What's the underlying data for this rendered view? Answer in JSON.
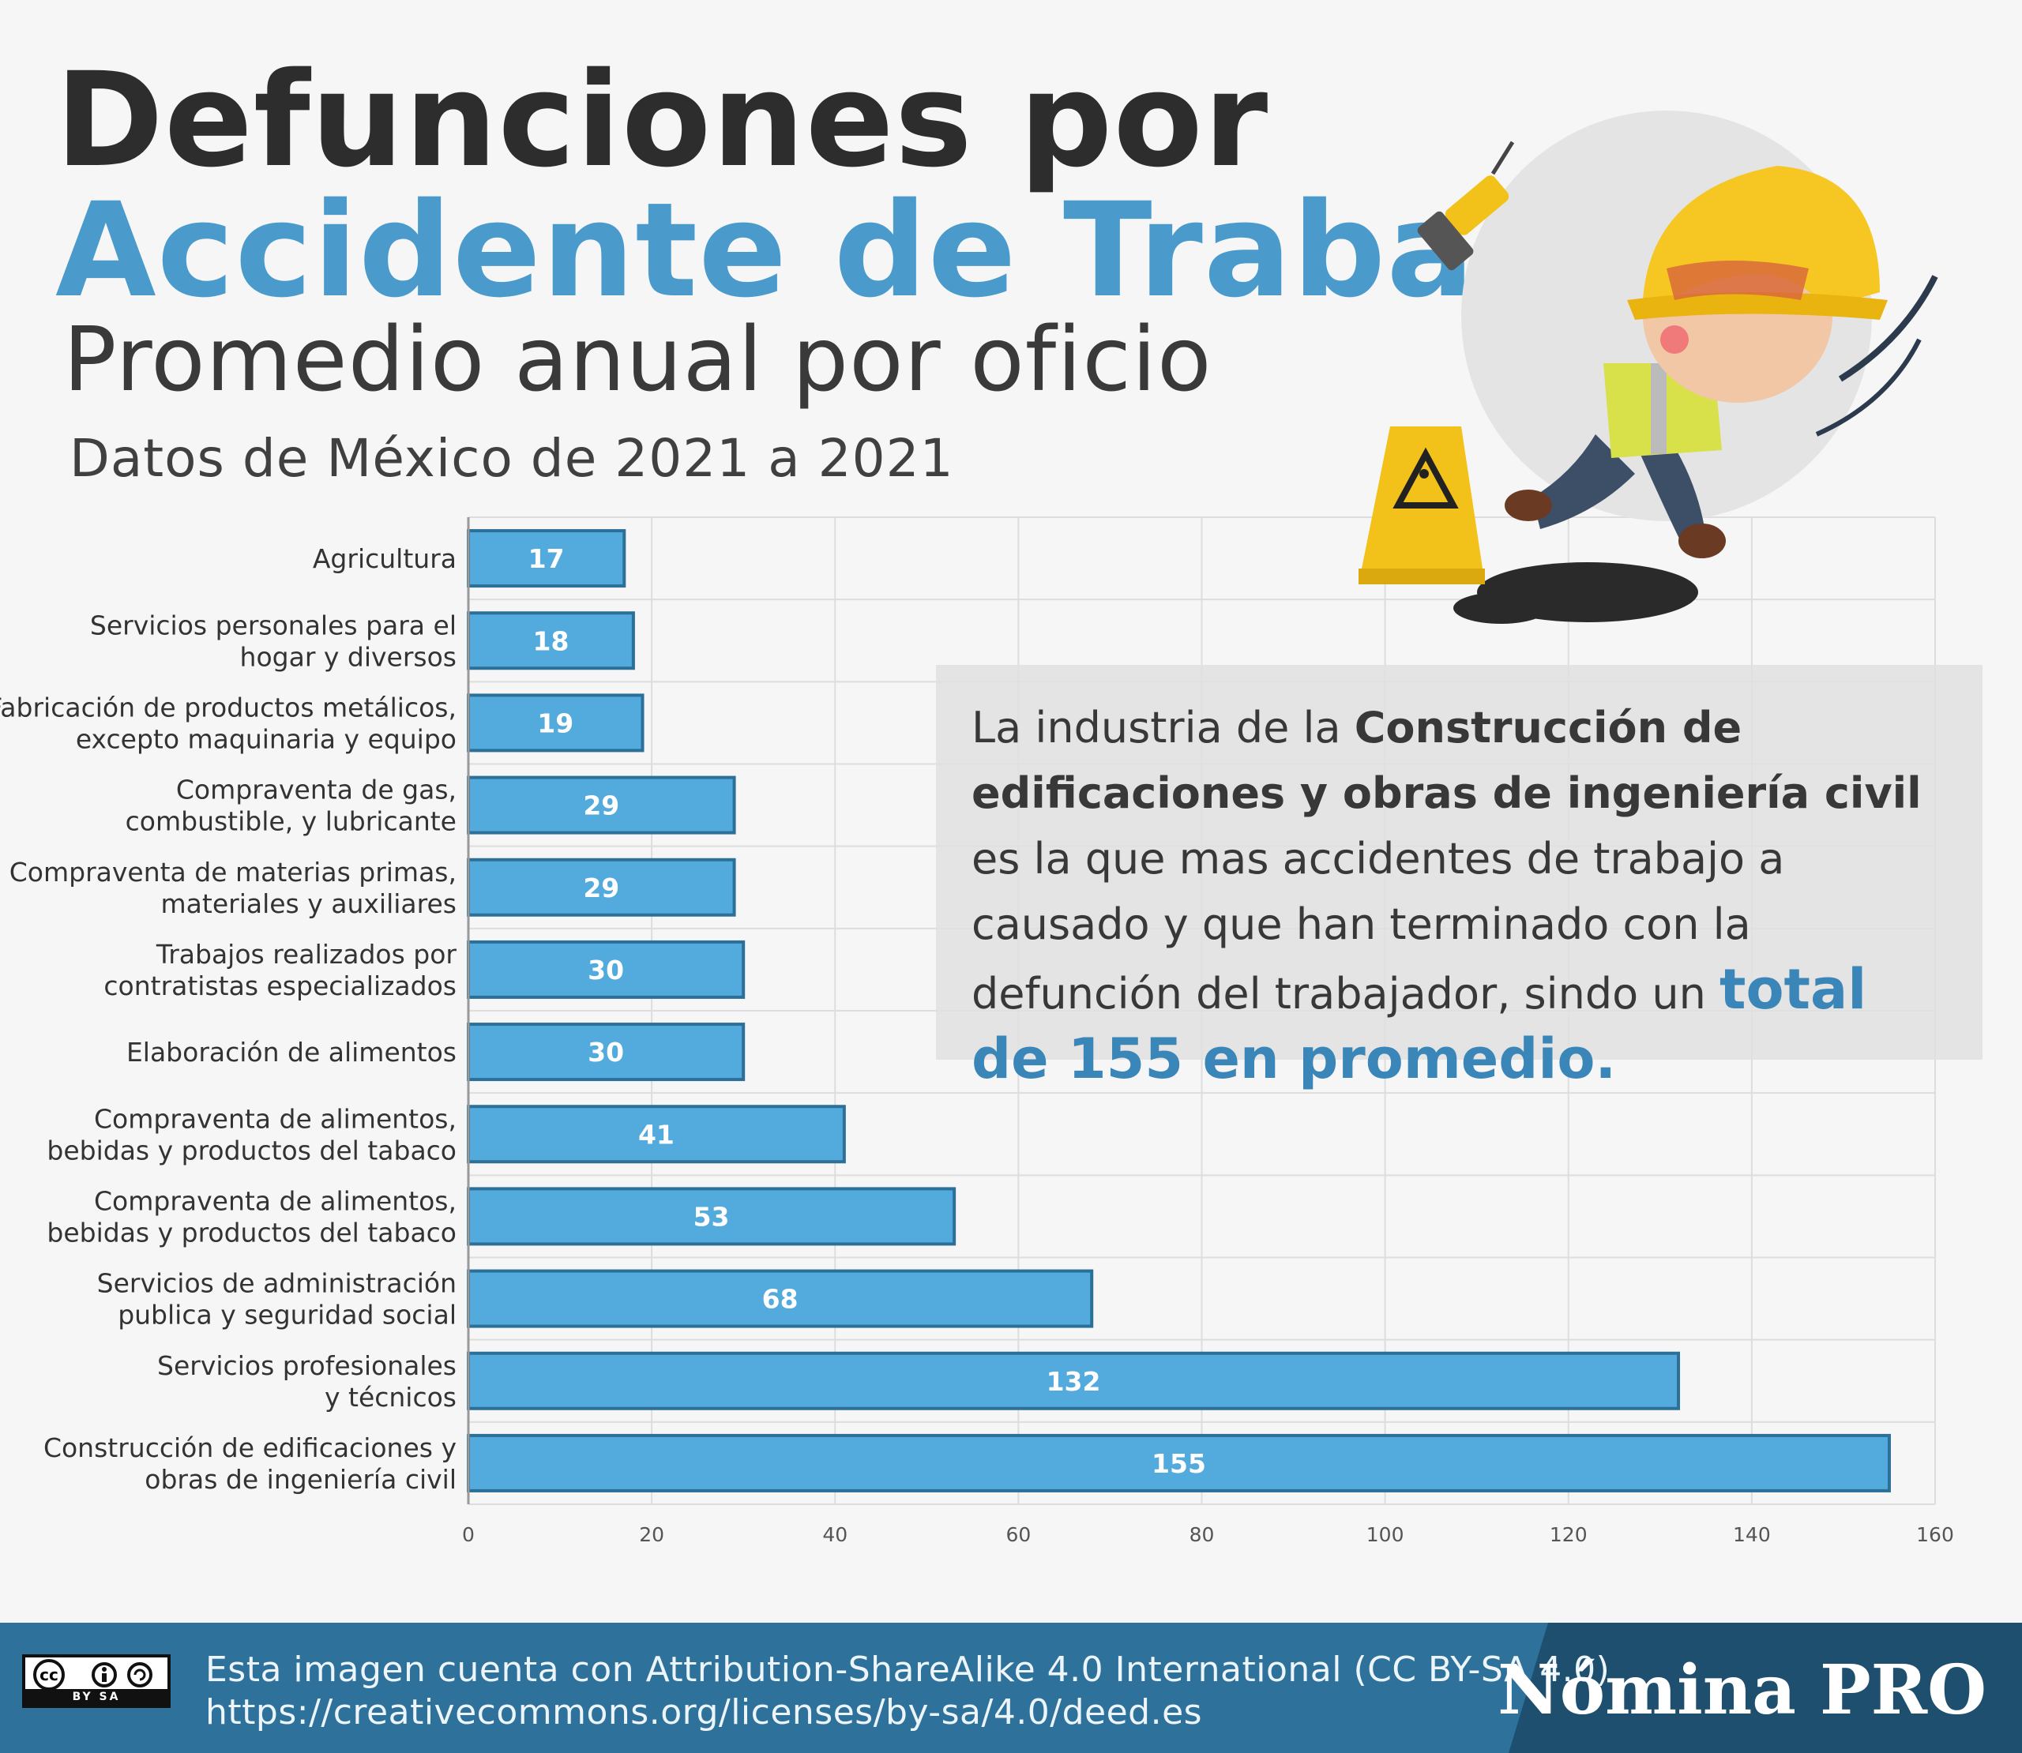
{
  "header": {
    "title_line1": "Defunciones por",
    "title_line2": "Accidente de Trabajo",
    "subtitle": "Promedio anual por oficio",
    "period": "Datos de México de  2021 a 2021"
  },
  "colors": {
    "accent": "#4a9bcb",
    "bar_fill": "#52aadd",
    "bar_stroke": "#2c6f97",
    "highlight": "#3a86b8",
    "text_dark": "#2d2d2d",
    "footer_bg": "#2e729b",
    "footer_dark": "#1f4f6e"
  },
  "chart_data": {
    "type": "bar",
    "orientation": "horizontal",
    "title": "Promedio anual por oficio",
    "xlabel": "",
    "ylabel": "",
    "xlim": [
      0,
      160
    ],
    "xticks": [
      0,
      20,
      40,
      60,
      80,
      100,
      120,
      140,
      160
    ],
    "grid": true,
    "categories": [
      [
        "Agricultura"
      ],
      [
        "Servicios personales para el",
        "hogar y diversos"
      ],
      [
        "Fabricación de productos metálicos,",
        "excepto maquinaria y equipo"
      ],
      [
        "Compraventa de gas,",
        "combustible, y lubricante"
      ],
      [
        "Compraventa de materias primas,",
        "materiales y auxiliares"
      ],
      [
        "Trabajos realizados por",
        "contratistas especializados"
      ],
      [
        "Elaboración de alimentos"
      ],
      [
        "Compraventa de alimentos,",
        "bebidas y productos del tabaco"
      ],
      [
        "Compraventa de alimentos,",
        "bebidas y productos del tabaco"
      ],
      [
        "Servicios de administración",
        "publica y seguridad social"
      ],
      [
        "Servicios profesionales",
        "y técnicos"
      ],
      [
        "Construcción de edificaciones y",
        "obras de ingeniería civil"
      ]
    ],
    "values": [
      17,
      18,
      19,
      29,
      29,
      30,
      30,
      41,
      53,
      68,
      132,
      155
    ]
  },
  "callout": {
    "part1": "La industria de la ",
    "bold": "Construcción de edificaciones y obras de ingeniería civil",
    "part2": " es la que mas accidentes de trabajo a causado y que han terminado con la defunción del trabajador, sindo un ",
    "highlight": "total de 155 en promedio."
  },
  "illustration": {
    "icon": "construction-worker-slipping-icon",
    "sign_icon": "wet-floor-sign-icon",
    "drill_icon": "drill-icon"
  },
  "footer": {
    "license_badge": "cc",
    "license_badge_sub": "BY SA",
    "license_text": "Esta imagen cuenta con Attribution-ShareAlike 4.0 International (CC BY-SA 4.0)",
    "license_url": "https://creativecommons.org/licenses/by-sa/4.0/deed.es",
    "brand": "Nómina PRO"
  }
}
